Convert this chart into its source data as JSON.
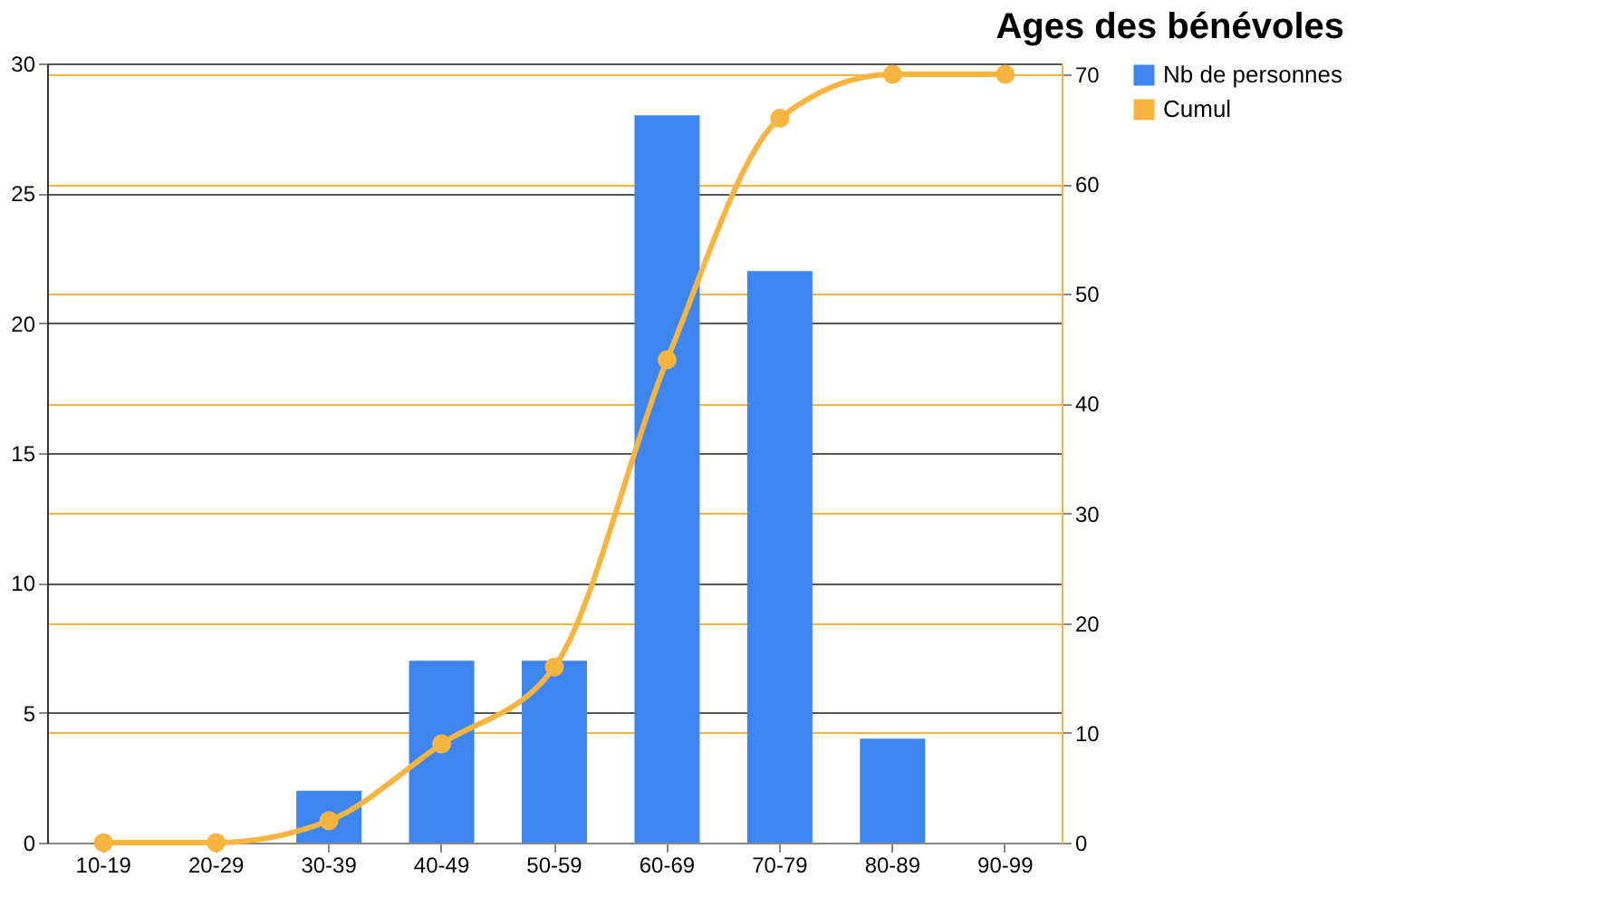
{
  "chart_data": {
    "type": "bar",
    "title": "Ages des bénévoles",
    "categories": [
      "10-19",
      "20-29",
      "30-39",
      "40-49",
      "50-59",
      "60-69",
      "70-79",
      "80-89",
      "90-99"
    ],
    "series": [
      {
        "name": "Nb de personnes",
        "color": "#3d85f0",
        "values": [
          0,
          0,
          2,
          7,
          7,
          28,
          22,
          4,
          0
        ]
      },
      {
        "name": "Cumul",
        "type": "line",
        "axis": "y2",
        "color": "#f7b43e",
        "marker": "circle",
        "values": [
          0,
          0,
          2,
          9,
          16,
          44,
          66,
          70,
          70
        ]
      }
    ],
    "ylim": [
      0,
      30
    ],
    "yticks": [
      0,
      5,
      10,
      15,
      20,
      25,
      30
    ],
    "y2lim": [
      0,
      71
    ],
    "y2ticks": [
      0,
      10,
      20,
      30,
      40,
      50,
      60,
      70
    ],
    "grid": true,
    "legend": "right"
  }
}
